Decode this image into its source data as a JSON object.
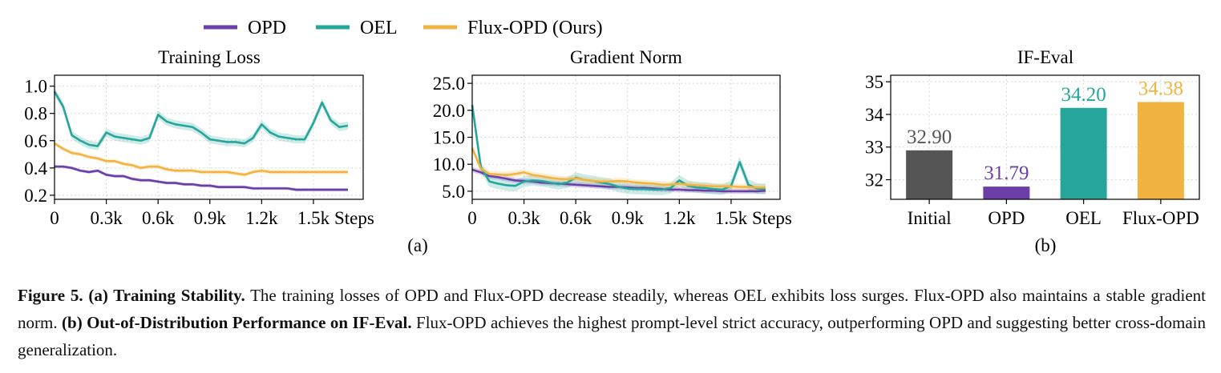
{
  "legend": {
    "placement": "top-left",
    "items": [
      {
        "label": "OPD",
        "color": "#6a3fa8"
      },
      {
        "label": "OEL",
        "color": "#26a69a"
      },
      {
        "label": "Flux-OPD (Ours)",
        "color": "#f2b441"
      }
    ]
  },
  "panel_labels": {
    "a": "(a)",
    "b": "(b)"
  },
  "caption": {
    "figure_label": "Figure 5.",
    "part_a_label": "(a) Training Stability.",
    "part_a_text": " The training losses of OPD and Flux-OPD decrease steadily, whereas OEL exhibits loss surges. Flux-OPD also maintains a stable gradient norm. ",
    "part_b_label": "(b) Out-of-Distribution Performance on IF-Eval.",
    "part_b_text": " Flux-OPD achieves the highest prompt-level strict accuracy, outperforming OPD and suggesting better cross-domain generalization."
  },
  "chart_data": [
    {
      "type": "line",
      "title": "Training Loss",
      "xlabel": "",
      "ylabel": "",
      "xlim": [
        0,
        1700
      ],
      "ylim": [
        0.17,
        1.08
      ],
      "xticks": [
        0,
        300,
        600,
        900,
        1200,
        1500
      ],
      "xtick_labels": [
        "0",
        "0.3k",
        "0.6k",
        "0.9k",
        "1.2k",
        "1.5k"
      ],
      "xtick_suffix": "Steps",
      "yticks": [
        0.2,
        0.4,
        0.6,
        0.8,
        1.0
      ],
      "ytick_labels": [
        "0.2",
        "0.4",
        "0.6",
        "0.8",
        "1.0"
      ],
      "grid": true,
      "x": [
        0,
        50,
        100,
        150,
        200,
        250,
        300,
        350,
        400,
        450,
        500,
        550,
        600,
        650,
        700,
        750,
        800,
        850,
        900,
        950,
        1000,
        1050,
        1100,
        1150,
        1200,
        1250,
        1300,
        1350,
        1400,
        1450,
        1500,
        1550,
        1600,
        1650,
        1700
      ],
      "series": [
        {
          "name": "OPD",
          "color": "#6a3fa8",
          "band": 0.012,
          "values": [
            0.41,
            0.41,
            0.4,
            0.38,
            0.37,
            0.38,
            0.35,
            0.34,
            0.34,
            0.32,
            0.31,
            0.31,
            0.3,
            0.29,
            0.29,
            0.28,
            0.28,
            0.27,
            0.27,
            0.26,
            0.26,
            0.26,
            0.26,
            0.25,
            0.25,
            0.25,
            0.25,
            0.25,
            0.24,
            0.24,
            0.24,
            0.24,
            0.24,
            0.24,
            0.24
          ]
        },
        {
          "name": "OEL",
          "color": "#26a69a",
          "band": 0.03,
          "values": [
            0.96,
            0.85,
            0.64,
            0.6,
            0.57,
            0.56,
            0.66,
            0.63,
            0.62,
            0.61,
            0.6,
            0.62,
            0.79,
            0.74,
            0.72,
            0.71,
            0.7,
            0.66,
            0.61,
            0.6,
            0.59,
            0.59,
            0.58,
            0.62,
            0.72,
            0.66,
            0.63,
            0.62,
            0.61,
            0.61,
            0.73,
            0.88,
            0.75,
            0.7,
            0.71
          ]
        },
        {
          "name": "Flux-OPD (Ours)",
          "color": "#f2b441",
          "band": 0.015,
          "values": [
            0.58,
            0.54,
            0.51,
            0.5,
            0.48,
            0.47,
            0.45,
            0.45,
            0.43,
            0.42,
            0.4,
            0.41,
            0.41,
            0.39,
            0.38,
            0.38,
            0.38,
            0.37,
            0.37,
            0.37,
            0.37,
            0.36,
            0.35,
            0.37,
            0.38,
            0.37,
            0.37,
            0.37,
            0.37,
            0.37,
            0.37,
            0.37,
            0.37,
            0.37,
            0.37
          ]
        }
      ]
    },
    {
      "type": "line",
      "title": "Gradient Norm",
      "xlabel": "",
      "ylabel": "",
      "xlim": [
        0,
        1700
      ],
      "ylim": [
        3.5,
        26.5
      ],
      "xticks": [
        0,
        300,
        600,
        900,
        1200,
        1500
      ],
      "xtick_labels": [
        "0",
        "0.3k",
        "0.6k",
        "0.9k",
        "1.2k",
        "1.5k"
      ],
      "xtick_suffix": "Steps",
      "yticks": [
        5,
        10,
        15,
        20,
        25
      ],
      "ytick_labels": [
        "5.0",
        "10.0",
        "15.0",
        "20.0",
        "25.0"
      ],
      "grid": true,
      "x": [
        0,
        50,
        100,
        150,
        200,
        250,
        300,
        350,
        400,
        450,
        500,
        550,
        600,
        650,
        700,
        750,
        800,
        850,
        900,
        950,
        1000,
        1050,
        1100,
        1150,
        1200,
        1250,
        1300,
        1350,
        1400,
        1450,
        1500,
        1550,
        1600,
        1650,
        1700
      ],
      "series": [
        {
          "name": "OPD",
          "color": "#6a3fa8",
          "band": 0.5,
          "values": [
            9.0,
            8.5,
            7.8,
            7.6,
            7.3,
            7.0,
            6.9,
            6.8,
            6.6,
            6.5,
            6.4,
            6.3,
            6.2,
            6.1,
            6.0,
            5.9,
            5.8,
            5.8,
            5.7,
            5.6,
            5.6,
            5.5,
            5.4,
            5.3,
            5.3,
            5.2,
            5.2,
            5.1,
            5.1,
            5.0,
            5.0,
            5.0,
            5.0,
            5.0,
            5.1
          ]
        },
        {
          "name": "OEL",
          "color": "#26a69a",
          "band": 1.0,
          "values": [
            21.0,
            9.5,
            6.8,
            6.4,
            6.1,
            6.0,
            6.8,
            7.0,
            6.9,
            6.6,
            6.3,
            6.6,
            7.5,
            7.1,
            6.9,
            6.6,
            6.3,
            5.8,
            5.5,
            5.4,
            5.4,
            5.3,
            5.3,
            5.6,
            7.0,
            6.0,
            5.7,
            5.6,
            5.4,
            5.3,
            6.0,
            10.4,
            6.2,
            5.5,
            5.4
          ]
        },
        {
          "name": "Flux-OPD (Ours)",
          "color": "#f2b441",
          "band": 0.6,
          "values": [
            13.0,
            9.2,
            8.2,
            8.1,
            8.0,
            8.2,
            8.5,
            8.0,
            7.8,
            7.5,
            7.3,
            7.2,
            7.4,
            7.1,
            6.9,
            6.8,
            6.8,
            6.9,
            6.8,
            6.6,
            6.5,
            6.4,
            6.2,
            6.2,
            6.4,
            6.2,
            6.1,
            6.0,
            5.9,
            5.9,
            5.9,
            5.8,
            5.8,
            5.7,
            5.7
          ]
        }
      ]
    },
    {
      "type": "bar",
      "title": "IF-Eval",
      "xlabel": "",
      "ylabel": "",
      "categories": [
        "Initial",
        "OPD",
        "OEL",
        "Flux-OPD"
      ],
      "values": [
        32.9,
        31.79,
        34.2,
        34.38
      ],
      "value_labels": [
        "32.90",
        "31.79",
        "34.20",
        "34.38"
      ],
      "colors": [
        "#555555",
        "#6a3fa8",
        "#26a69a",
        "#f2b441"
      ],
      "ylim": [
        31.4,
        35.2
      ],
      "yticks": [
        32,
        33,
        34,
        35
      ],
      "ytick_labels": [
        "32",
        "33",
        "34",
        "35"
      ],
      "grid": true
    }
  ]
}
